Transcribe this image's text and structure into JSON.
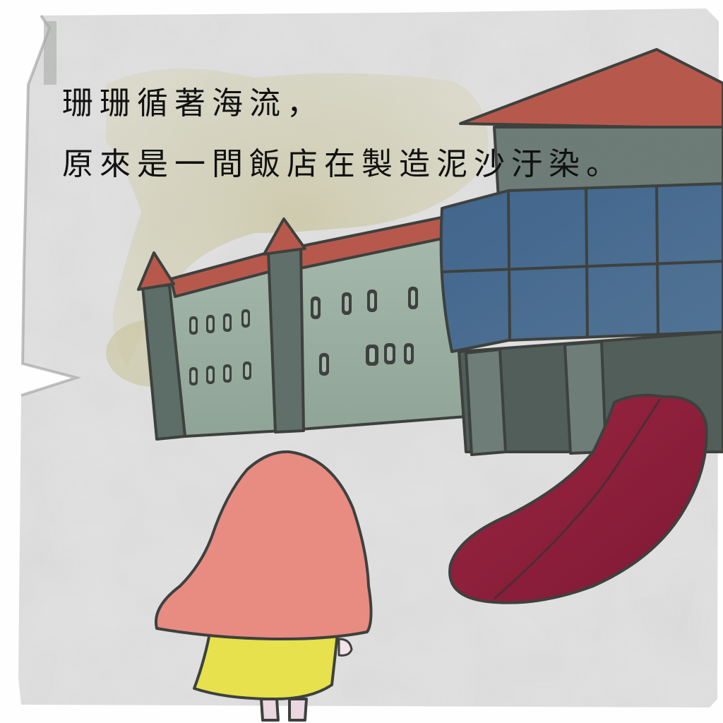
{
  "caption": {
    "line1": "珊珊循著海流，",
    "line2": "原來是一間飯店在製造泥沙汙染。"
  },
  "colors": {
    "paper": "#e3e3e3",
    "roof": "#b5574a",
    "wall": "#9bb0a4",
    "tower": "#5b6b66",
    "glass": "#46698f",
    "sludge": "#8e1d35",
    "hair": "#e88a80",
    "dress": "#e6e14a"
  },
  "icons": {
    "hotel": "hotel-building-illustration",
    "girl": "girl-figure-illustration",
    "sludge": "mud-pollution-stream-illustration"
  }
}
